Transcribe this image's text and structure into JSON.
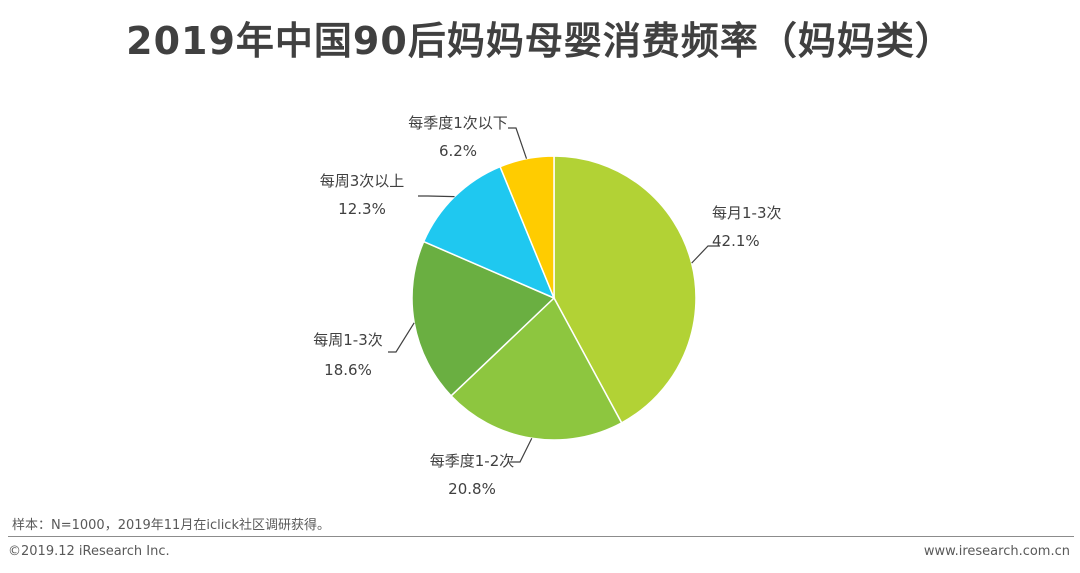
{
  "title": "2019年中国90后妈妈母婴消费频率（妈妈类）",
  "chart_data": {
    "type": "pie",
    "slices": [
      {
        "label": "每月1-3次",
        "value": 42.1,
        "value_label": "42.1%",
        "color": "#b2d235"
      },
      {
        "label": "每季度1-2次",
        "value": 20.8,
        "value_label": "20.8%",
        "color": "#8dc63f"
      },
      {
        "label": "每周1-3次",
        "value": 18.6,
        "value_label": "18.6%",
        "color": "#6aaf41"
      },
      {
        "label": "每周3次以上",
        "value": 12.3,
        "value_label": "12.3%",
        "color": "#1fc8f0"
      },
      {
        "label": "每季度1次以下",
        "value": 6.2,
        "value_label": "6.2%",
        "color": "#ffcc00"
      }
    ]
  },
  "footer": {
    "source": "样本：N=1000，2019年11月在iclick社区调研获得。",
    "copyright": "©2019.12 iResearch Inc.",
    "site": "www.iresearch.com.cn"
  }
}
